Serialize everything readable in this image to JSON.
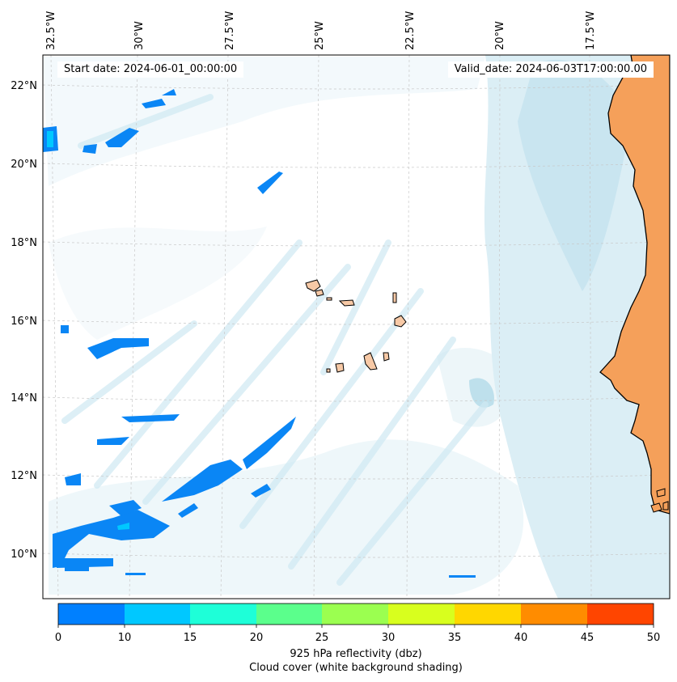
{
  "header": {
    "start_label": "Start date: 2024-06-01_00:00:00",
    "valid_label": "Valid_date: 2024-06-03T17:00:00.00"
  },
  "longitude_labels": [
    "32.5°W",
    "30°W",
    "27.5°W",
    "25°W",
    "22.5°W",
    "20°W",
    "17.5°W"
  ],
  "latitude_labels": [
    "22°N",
    "20°N",
    "18°N",
    "16°N",
    "14°N",
    "12°N",
    "10°N"
  ],
  "colorbar": {
    "ticks": [
      "0",
      "10",
      "15",
      "20",
      "25",
      "30",
      "35",
      "40",
      "45",
      "50"
    ],
    "colors": [
      "#0080ff",
      "#00c8ff",
      "#1effd8",
      "#5bff8c",
      "#9bff50",
      "#d8ff1e",
      "#ffd700",
      "#ff8c00",
      "#ff4500"
    ],
    "label": "925 hPa reflectivity (dbz)",
    "sublabel": "Cloud cover (white background shading)"
  },
  "colors": {
    "land": "#f5a05a",
    "islands": "#f7c9a6",
    "cloud": "#bfe3ef",
    "reflectivity_low": "#0a86f5"
  }
}
